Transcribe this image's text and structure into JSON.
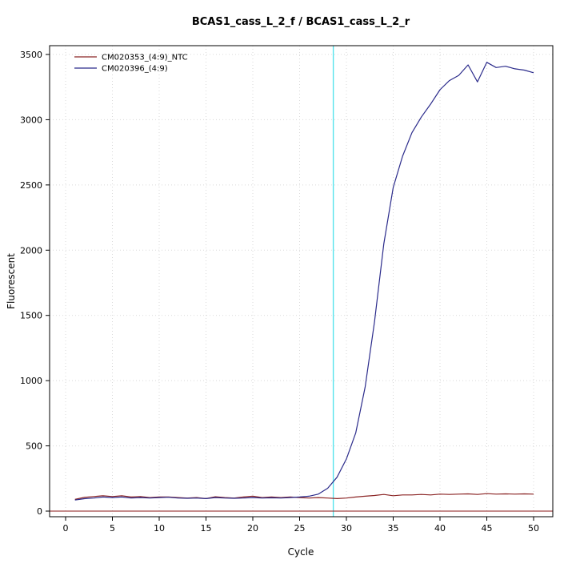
{
  "chart_data": {
    "type": "line",
    "title": "BCAS1_cass_L_2_f / BCAS1_cass_L_2_r",
    "xlabel": "Cycle",
    "ylabel": "Fluorescent",
    "xlim": [
      0,
      50
    ],
    "ylim": [
      0,
      3500
    ],
    "x_ticks": [
      0,
      5,
      10,
      15,
      20,
      25,
      30,
      35,
      40,
      45,
      50
    ],
    "y_ticks": [
      0,
      500,
      1000,
      1500,
      2000,
      2500,
      3000,
      3500
    ],
    "grid": true,
    "legend_position": "top-left",
    "threshold": {
      "cycle": 28.6,
      "color": "#55e2ec"
    },
    "baseline": {
      "value": 0,
      "color": "#8b1a1a"
    },
    "x": [
      1,
      2,
      3,
      4,
      5,
      6,
      7,
      8,
      9,
      10,
      11,
      12,
      13,
      14,
      15,
      16,
      17,
      18,
      19,
      20,
      21,
      22,
      23,
      24,
      25,
      26,
      27,
      28,
      29,
      30,
      31,
      32,
      33,
      34,
      35,
      36,
      37,
      38,
      39,
      40,
      41,
      42,
      43,
      44,
      45,
      46,
      47,
      48,
      49,
      50
    ],
    "series": [
      {
        "name": "CM020353_(4:9)_NTC",
        "color": "#8b2525",
        "values": [
          90,
          105,
          112,
          118,
          112,
          118,
          108,
          112,
          104,
          108,
          108,
          104,
          100,
          104,
          96,
          110,
          104,
          100,
          108,
          114,
          104,
          108,
          104,
          108,
          104,
          100,
          104,
          100,
          96,
          100,
          108,
          114,
          120,
          128,
          118,
          124,
          124,
          128,
          124,
          130,
          128,
          130,
          132,
          128,
          134,
          130,
          132,
          130,
          132,
          130
        ]
      },
      {
        "name": "CM020396_(4:9)",
        "color": "#2b2b8b",
        "values": [
          85,
          95,
          100,
          108,
          104,
          108,
          100,
          104,
          100,
          104,
          106,
          100,
          98,
          100,
          96,
          104,
          100,
          98,
          100,
          104,
          100,
          102,
          100,
          104,
          108,
          114,
          130,
          175,
          260,
          400,
          600,
          950,
          1450,
          2050,
          2480,
          2720,
          2900,
          3020,
          3120,
          3230,
          3300,
          3340,
          3420,
          3290,
          3440,
          3400,
          3410,
          3390,
          3380,
          3360
        ]
      }
    ]
  }
}
